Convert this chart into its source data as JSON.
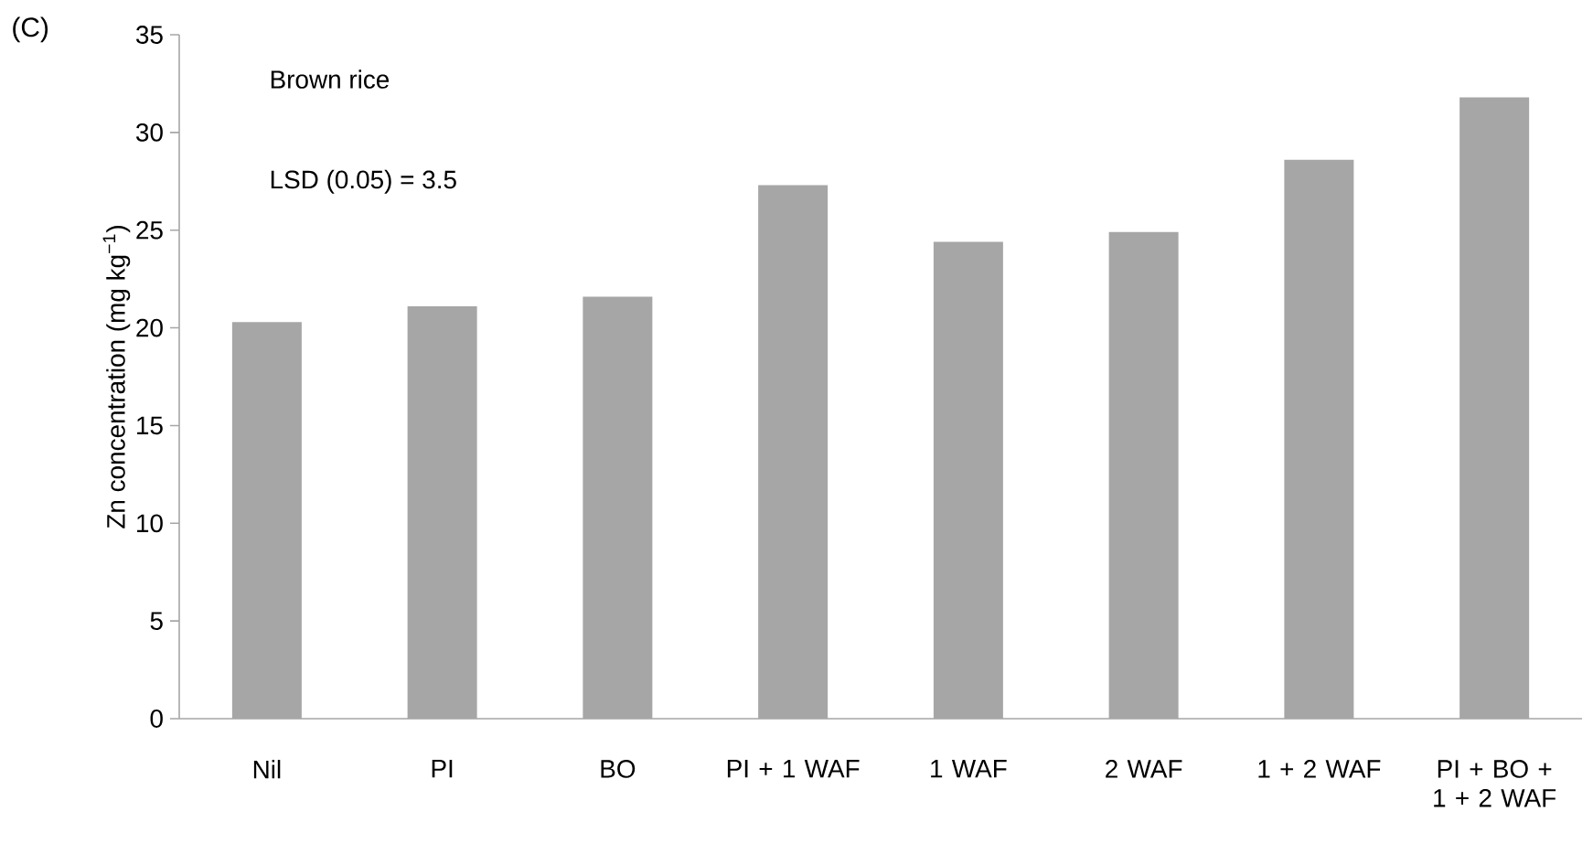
{
  "chart_data": {
    "type": "bar",
    "ylabel": "Zn concentration (mg kg$^{−1}$)",
    "annotations": [
      "(C)",
      "Brown rice",
      "LSD (0.05) = 3.5"
    ],
    "categories": [
      "Nil",
      "PI",
      "BO",
      "PI + 1 WAF",
      "1 WAF",
      "2 WAF",
      "1 + 2 WAF",
      "PI + BO + 1 + 2 WAF"
    ],
    "values": [
      20.3,
      21.1,
      21.6,
      27.3,
      24.4,
      24.9,
      28.6,
      31.8
    ],
    "color": "#a6a6a6",
    "ylim": [
      0,
      35
    ],
    "yticks": [
      0,
      5,
      10,
      15,
      20,
      25,
      30,
      35
    ]
  }
}
